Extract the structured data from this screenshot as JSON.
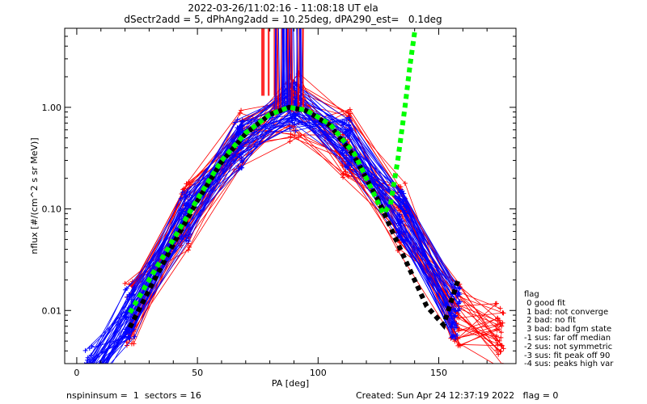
{
  "header": {
    "title_line1": "2022-03-26/11:02:16 - 11:08:18 UT ela",
    "title_line2": "dSectr2add = 5, dPhAng2add = 10.25deg, dPA290_est=   0.1deg"
  },
  "footer": {
    "left": "nspininsum =  1  sectors = 16",
    "right": "Created: Sun Apr 24 12:37:19 2022   flag = 0"
  },
  "legend": {
    "title": "flag",
    "items": [
      " 0 good fit",
      " 1 bad: not converge",
      " 2 bad: no fit",
      " 3 bad: bad fgm state",
      "-1 sus: far off median",
      "-2 sus: not symmetric",
      "-3 sus: fit peak off 90",
      "-4 sus: peaks high var"
    ]
  },
  "colors": {
    "red_series": "#ff0000",
    "blue_series": "#0000ff",
    "green_fit": "#00ff00",
    "black_fit": "#000000",
    "axes": "#000000"
  },
  "chart_data": {
    "type": "line",
    "xlabel": "PA [deg]",
    "ylabel": "nflux [#/(cm^2 s sr MeV)]",
    "xlim": [
      -5,
      182
    ],
    "ylim": [
      0.003,
      6.0
    ],
    "yscale": "log",
    "xticks": [
      0,
      50,
      100,
      150
    ],
    "xtick_labels": [
      "0",
      "50",
      "100",
      "150"
    ],
    "yticks": [
      0.01,
      0.1,
      1.0
    ],
    "ytick_labels": [
      "0.01",
      "0.10",
      "1.00"
    ],
    "grid": false,
    "legend_position": "right",
    "series": [
      {
        "kind": "spectra",
        "color": "red",
        "count": 32,
        "x": [
          22,
          45,
          67,
          90,
          112,
          135,
          157,
          175
        ],
        "y": [
          0.0095,
          0.085,
          0.45,
          1.0,
          0.45,
          0.085,
          0.0095,
          0.006
        ],
        "spread_factor": 2.2
      },
      {
        "kind": "spectra",
        "color": "blue",
        "count": 45,
        "x": [
          5,
          22,
          45,
          67,
          90,
          112,
          135,
          157
        ],
        "y": [
          0.0025,
          0.0095,
          0.085,
          0.45,
          1.0,
          0.45,
          0.085,
          0.0095
        ],
        "spread_factor": 1.8
      },
      {
        "kind": "fit",
        "color": "black",
        "x": [
          22,
          30,
          40,
          50,
          60,
          70,
          80,
          88,
          95,
          105,
          115,
          125,
          135,
          145,
          152,
          158
        ],
        "y": [
          0.0068,
          0.016,
          0.045,
          0.12,
          0.29,
          0.55,
          0.85,
          1.0,
          0.93,
          0.66,
          0.33,
          0.12,
          0.036,
          0.011,
          0.0072,
          0.02
        ]
      },
      {
        "kind": "fit",
        "color": "green",
        "x": [
          22,
          30,
          40,
          50,
          60,
          70,
          80,
          88,
          95,
          105,
          115,
          122,
          127,
          130,
          133,
          136,
          138,
          140
        ],
        "y": [
          0.0095,
          0.02,
          0.05,
          0.125,
          0.3,
          0.56,
          0.85,
          1.0,
          0.94,
          0.68,
          0.35,
          0.16,
          0.09,
          0.11,
          0.3,
          1.0,
          2.5,
          5.5
        ]
      }
    ]
  }
}
